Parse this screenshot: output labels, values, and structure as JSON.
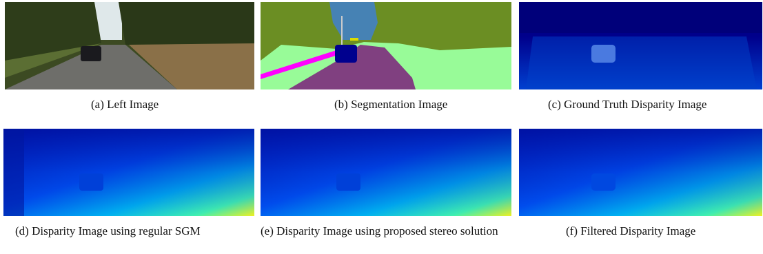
{
  "figure": {
    "captions": [
      "(a) Left Image",
      "(b) Segmentation Image",
      "(c) Ground Truth Disparity Image",
      "(d) Disparity Image using regular SGM",
      "(e) Disparity Image using proposed stereo solution",
      "(f) Filtered Disparity Image"
    ]
  }
}
